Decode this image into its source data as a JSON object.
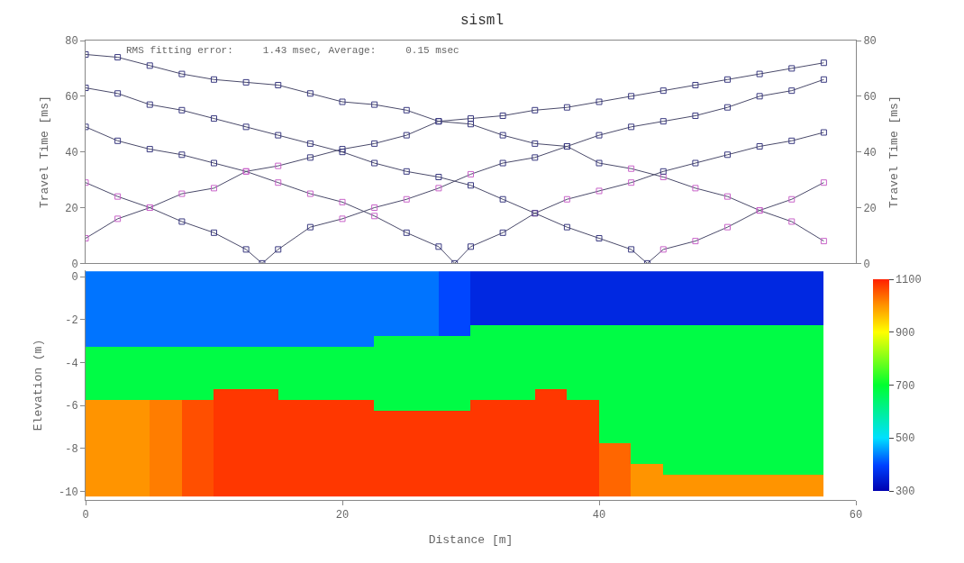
{
  "chart_data": [
    {
      "type": "line",
      "title": "sisml",
      "ylabel": "Travel Time [ms]",
      "y2label": "Travel Time [ms]",
      "annotations": [
        "RMS fitting error:     1.43 msec, Average:     0.15 msec"
      ],
      "xlim": [
        0,
        60
      ],
      "ylim": [
        0,
        80
      ],
      "yticks": [
        0,
        20,
        40,
        60,
        80
      ],
      "y2lim": [
        0,
        80
      ],
      "y2ticks": [
        0,
        20,
        40,
        60,
        80
      ],
      "tick_labels": "y",
      "marker": "square",
      "line_style": "solid",
      "series": [
        {
          "color": "#4a4a6a",
          "x": [
            0,
            2.5,
            5,
            7.5,
            10,
            12.5,
            15,
            17.5,
            20,
            22.5,
            25,
            27.5,
            30,
            32.5,
            35,
            37.5,
            40,
            42.5,
            45,
            47.5,
            50,
            52.5,
            55,
            57.5
          ],
          "values": [
            75,
            74,
            71,
            68,
            66,
            65,
            64,
            61,
            58,
            57,
            55,
            51,
            50,
            46,
            43,
            42,
            36,
            34,
            31,
            27,
            24,
            19,
            15,
            8
          ],
          "colors": [
            "#3a3a80",
            "#3a3a80",
            "#3a3a80",
            "#3a3a80",
            "#3a3a80",
            "#3a3a80",
            "#3a3a80",
            "#3a3a80",
            "#3a3a80",
            "#3a3a80",
            "#3a3a80",
            "#3a3a80",
            "#3a3a80",
            "#3a3a80",
            "#3a3a80",
            "#3a3a80",
            "#3a3a80",
            "#c863c8",
            "#c863c8",
            "#c863c8",
            "#c863c8",
            "#c863c8",
            "#c863c8",
            "#c863c8"
          ]
        },
        {
          "color": "#4a4a6a",
          "x": [
            0,
            2.5,
            5,
            7.5,
            10,
            12.5,
            15,
            17.5,
            20,
            22.5,
            25,
            27.5,
            30,
            32.5,
            35,
            37.5,
            40,
            42.5,
            45,
            47.5,
            50,
            52.5,
            55,
            57.5
          ],
          "values": [
            9,
            16,
            20,
            25,
            27,
            33,
            35,
            38,
            41,
            43,
            46,
            51,
            52,
            53,
            55,
            56,
            58,
            60,
            62,
            64,
            66,
            68,
            70,
            72
          ],
          "colors": [
            "#c863c8",
            "#c863c8",
            "#c863c8",
            "#c863c8",
            "#c863c8",
            "#c863c8",
            "#c863c8",
            "#3a3a80",
            "#3a3a80",
            "#3a3a80",
            "#3a3a80",
            "#3a3a80",
            "#3a3a80",
            "#3a3a80",
            "#3a3a80",
            "#3a3a80",
            "#3a3a80",
            "#3a3a80",
            "#3a3a80",
            "#3a3a80",
            "#3a3a80",
            "#3a3a80",
            "#3a3a80",
            "#3a3a80"
          ]
        },
        {
          "color": "#4a4a6a",
          "x": [
            0,
            2.5,
            5,
            7.5,
            10,
            12.5,
            13.75,
            15,
            17.5,
            20,
            22.5,
            25,
            27.5,
            30,
            32.5,
            35,
            37.5,
            40,
            42.5,
            45,
            47.5,
            50,
            52.5,
            55,
            57.5
          ],
          "values": [
            29,
            24,
            20,
            15,
            11,
            5,
            0,
            5,
            13,
            16,
            20,
            23,
            27,
            32,
            36,
            38,
            42,
            46,
            49,
            51,
            53,
            56,
            60,
            62,
            66
          ],
          "colors": [
            "#c863c8",
            "#c863c8",
            "#c863c8",
            "#3a3a80",
            "#3a3a80",
            "#3a3a80",
            "#3a3a80",
            "#3a3a80",
            "#3a3a80",
            "#c863c8",
            "#c863c8",
            "#c863c8",
            "#c863c8",
            "#c863c8",
            "#3a3a80",
            "#3a3a80",
            "#3a3a80",
            "#3a3a80",
            "#3a3a80",
            "#3a3a80",
            "#3a3a80",
            "#3a3a80",
            "#3a3a80",
            "#3a3a80",
            "#3a3a80"
          ]
        },
        {
          "color": "#4a4a6a",
          "x": [
            0,
            2.5,
            5,
            7.5,
            10,
            12.5,
            15,
            17.5,
            20,
            22.5,
            25,
            27.5,
            28.75,
            30,
            32.5,
            35,
            37.5,
            40,
            42.5,
            45,
            47.5,
            50,
            52.5,
            55,
            57.5
          ],
          "values": [
            49,
            44,
            41,
            39,
            36,
            33,
            29,
            25,
            22,
            17,
            11,
            6,
            0,
            6,
            11,
            18,
            23,
            26,
            29,
            33,
            36,
            39,
            42,
            44,
            47
          ],
          "colors": [
            "#3a3a80",
            "#3a3a80",
            "#3a3a80",
            "#3a3a80",
            "#3a3a80",
            "#c863c8",
            "#c863c8",
            "#c863c8",
            "#c863c8",
            "#c863c8",
            "#3a3a80",
            "#3a3a80",
            "#3a3a80",
            "#3a3a80",
            "#3a3a80",
            "#c863c8",
            "#c863c8",
            "#c863c8",
            "#c863c8",
            "#3a3a80",
            "#3a3a80",
            "#3a3a80",
            "#3a3a80",
            "#3a3a80",
            "#3a3a80"
          ]
        },
        {
          "color": "#4a4a6a",
          "x": [
            0,
            2.5,
            5,
            7.5,
            10,
            12.5,
            15,
            17.5,
            20,
            22.5,
            25,
            27.5,
            30,
            32.5,
            35,
            37.5,
            40,
            42.5,
            43.75,
            45,
            47.5,
            50,
            52.5,
            55,
            57.5
          ],
          "values": [
            63,
            61,
            57,
            55,
            52,
            49,
            46,
            43,
            40,
            36,
            33,
            31,
            28,
            23,
            18,
            13,
            9,
            5,
            0,
            5,
            8,
            13,
            19,
            23,
            29
          ],
          "colors": [
            "#3a3a80",
            "#3a3a80",
            "#3a3a80",
            "#3a3a80",
            "#3a3a80",
            "#3a3a80",
            "#3a3a80",
            "#3a3a80",
            "#3a3a80",
            "#3a3a80",
            "#3a3a80",
            "#3a3a80",
            "#3a3a80",
            "#3a3a80",
            "#3a3a80",
            "#3a3a80",
            "#3a3a80",
            "#3a3a80",
            "#3a3a80",
            "#c863c8",
            "#c863c8",
            "#c863c8",
            "#c863c8",
            "#c863c8",
            "#c863c8"
          ]
        }
      ]
    },
    {
      "type": "heatmap",
      "xlabel": "Distance [m]",
      "ylabel": "Elevation (m)",
      "xlim": [
        0,
        60
      ],
      "xticks": [
        0,
        20,
        40,
        60
      ],
      "ylim": [
        -10.4,
        0.3
      ],
      "yticks": [
        -10,
        -8,
        -6,
        -4,
        -2,
        0
      ],
      "clim": [
        300,
        1100
      ],
      "cticks": [
        300,
        500,
        700,
        900,
        1100
      ],
      "x": [
        1.25,
        3.75,
        6.25,
        8.75,
        11.25,
        13.75,
        16.25,
        18.75,
        21.25,
        23.75,
        26.25,
        28.75,
        31.25,
        33.75,
        36.25,
        38.75,
        41.25,
        43.75,
        46.25,
        48.75,
        51.25,
        53.75,
        56.25
      ],
      "y": [
        0,
        -0.5,
        -1,
        -1.5,
        -2,
        -2.5,
        -3,
        -3.5,
        -4,
        -4.5,
        -5,
        -5.5,
        -6,
        -6.5,
        -7,
        -7.5,
        -8,
        -8.5,
        -9,
        -9.5,
        -10
      ],
      "cells": [
        [
          430,
          430,
          430,
          430,
          430,
          430,
          430,
          430,
          430,
          430,
          430,
          400,
          360,
          360,
          360,
          360,
          360,
          360,
          360,
          360,
          360,
          360,
          360
        ],
        [
          430,
          430,
          430,
          430,
          430,
          430,
          430,
          430,
          430,
          430,
          430,
          400,
          360,
          360,
          360,
          360,
          360,
          360,
          360,
          360,
          360,
          360,
          360
        ],
        [
          430,
          430,
          430,
          430,
          430,
          430,
          430,
          430,
          430,
          430,
          430,
          400,
          360,
          360,
          360,
          360,
          360,
          360,
          360,
          360,
          360,
          360,
          360
        ],
        [
          430,
          430,
          430,
          430,
          430,
          430,
          430,
          430,
          430,
          430,
          430,
          400,
          360,
          360,
          360,
          360,
          360,
          360,
          360,
          360,
          360,
          360,
          360
        ],
        [
          430,
          430,
          430,
          430,
          430,
          430,
          430,
          430,
          430,
          430,
          430,
          400,
          360,
          360,
          360,
          360,
          360,
          360,
          360,
          360,
          360,
          360,
          360
        ],
        [
          430,
          430,
          430,
          430,
          430,
          430,
          430,
          430,
          430,
          430,
          430,
          400,
          680,
          680,
          680,
          680,
          680,
          680,
          680,
          680,
          680,
          680,
          680
        ],
        [
          430,
          430,
          430,
          430,
          430,
          430,
          430,
          430,
          430,
          680,
          680,
          680,
          680,
          680,
          680,
          680,
          680,
          680,
          680,
          680,
          680,
          680,
          680
        ],
        [
          680,
          680,
          680,
          680,
          680,
          680,
          680,
          680,
          680,
          680,
          680,
          680,
          680,
          680,
          680,
          680,
          680,
          680,
          680,
          680,
          680,
          680,
          680
        ],
        [
          680,
          680,
          680,
          680,
          680,
          680,
          680,
          680,
          680,
          680,
          680,
          680,
          680,
          680,
          680,
          680,
          680,
          680,
          680,
          680,
          680,
          680,
          680
        ],
        [
          680,
          680,
          680,
          680,
          680,
          680,
          680,
          680,
          680,
          680,
          680,
          680,
          680,
          680,
          680,
          680,
          680,
          680,
          680,
          680,
          680,
          680,
          680
        ],
        [
          680,
          680,
          680,
          680,
          680,
          680,
          680,
          680,
          680,
          680,
          680,
          680,
          680,
          680,
          680,
          680,
          680,
          680,
          680,
          680,
          680,
          680,
          680
        ],
        [
          680,
          680,
          680,
          680,
          1080,
          1080,
          680,
          680,
          680,
          680,
          680,
          680,
          680,
          680,
          1080,
          680,
          680,
          680,
          680,
          680,
          680,
          680,
          680
        ],
        [
          1000,
          1000,
          1020,
          1060,
          1080,
          1080,
          1080,
          1080,
          1080,
          680,
          680,
          680,
          1080,
          1080,
          1080,
          1080,
          680,
          680,
          680,
          680,
          680,
          680,
          680
        ],
        [
          1000,
          1000,
          1020,
          1060,
          1080,
          1080,
          1080,
          1080,
          1080,
          1080,
          1080,
          1080,
          1080,
          1080,
          1080,
          1080,
          680,
          680,
          680,
          680,
          680,
          680,
          680
        ],
        [
          1000,
          1000,
          1020,
          1060,
          1080,
          1080,
          1080,
          1080,
          1080,
          1080,
          1080,
          1080,
          1080,
          1080,
          1080,
          1080,
          680,
          680,
          680,
          680,
          680,
          680,
          680
        ],
        [
          1000,
          1000,
          1020,
          1060,
          1080,
          1080,
          1080,
          1080,
          1080,
          1080,
          1080,
          1080,
          1080,
          1080,
          1080,
          1080,
          680,
          680,
          680,
          680,
          680,
          680,
          680
        ],
        [
          1000,
          1000,
          1020,
          1060,
          1080,
          1080,
          1080,
          1080,
          1080,
          1080,
          1080,
          1080,
          1080,
          1080,
          1080,
          1080,
          1040,
          680,
          680,
          680,
          680,
          680,
          680
        ],
        [
          1000,
          1000,
          1020,
          1060,
          1080,
          1080,
          1080,
          1080,
          1080,
          1080,
          1080,
          1080,
          1080,
          1080,
          1080,
          1080,
          1040,
          680,
          680,
          680,
          680,
          680,
          680
        ],
        [
          1000,
          1000,
          1020,
          1060,
          1080,
          1080,
          1080,
          1080,
          1080,
          1080,
          1080,
          1080,
          1080,
          1080,
          1080,
          1080,
          1040,
          1000,
          680,
          680,
          680,
          680,
          680
        ],
        [
          1000,
          1000,
          1020,
          1060,
          1080,
          1080,
          1080,
          1080,
          1080,
          1080,
          1080,
          1080,
          1080,
          1080,
          1080,
          1080,
          1040,
          1000,
          1000,
          1000,
          1000,
          1000,
          1000
        ],
        [
          1000,
          1000,
          1020,
          1060,
          1080,
          1080,
          1080,
          1080,
          1080,
          1080,
          1080,
          1080,
          1080,
          1080,
          1080,
          1080,
          1040,
          1000,
          1000,
          1000,
          1000,
          1000,
          1000
        ]
      ]
    }
  ]
}
